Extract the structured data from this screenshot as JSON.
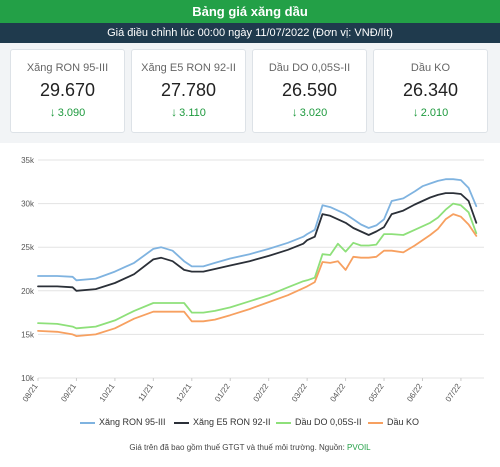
{
  "header": {
    "title": "Bảng giá xăng dầu",
    "subtitle": "Giá điều chỉnh lúc 00:00 ngày 11/07/2022 (Đơn vị: VNĐ/lít)"
  },
  "cards": [
    {
      "name": "Xăng RON 95-III",
      "price": "29.670",
      "change": "3.090"
    },
    {
      "name": "Xăng E5 RON 92-II",
      "price": "27.780",
      "change": "3.110"
    },
    {
      "name": "Dầu DO 0,05S-II",
      "price": "26.590",
      "change": "3.020"
    },
    {
      "name": "Dầu KO",
      "price": "26.340",
      "change": "2.010"
    }
  ],
  "footnote": {
    "text": "Giá trên đã bao gồm thuế GTGT và thuế môi trường. Nguồn: ",
    "source": "PVOIL"
  },
  "chart_data": {
    "type": "line",
    "title": "",
    "xlabel": "",
    "ylabel": "",
    "x_ticks": [
      "08/21",
      "09/21",
      "10/21",
      "11/21",
      "12/21",
      "01/22",
      "02/22",
      "03/22",
      "04/22",
      "05/22",
      "06/22",
      "07/22"
    ],
    "y_ticks": [
      "10k",
      "15k",
      "20k",
      "25k",
      "30k",
      "35k"
    ],
    "ylim": [
      10000,
      35000
    ],
    "xlim": [
      0,
      11.6
    ],
    "grid": true,
    "legend_position": "bottom",
    "series": [
      {
        "name": "Xăng RON 95-III",
        "color": "#7fb3e0",
        "x": [
          0,
          0.5,
          0.9,
          1.0,
          1.5,
          2.0,
          2.5,
          3.0,
          3.2,
          3.5,
          3.8,
          4.0,
          4.3,
          4.6,
          5.0,
          5.5,
          6.0,
          6.5,
          6.9,
          7.0,
          7.2,
          7.4,
          7.6,
          7.8,
          8.0,
          8.2,
          8.4,
          8.6,
          8.8,
          9.0,
          9.2,
          9.5,
          9.8,
          10.0,
          10.2,
          10.4,
          10.6,
          10.8,
          11.0,
          11.2,
          11.4
        ],
        "y": [
          21700,
          21700,
          21600,
          21200,
          21400,
          22200,
          23200,
          24800,
          25000,
          24600,
          23400,
          22800,
          22800,
          23200,
          23700,
          24200,
          24800,
          25500,
          26200,
          26500,
          27000,
          29800,
          29600,
          29200,
          28800,
          28200,
          27600,
          27200,
          27500,
          28200,
          30300,
          30600,
          31400,
          32000,
          32300,
          32600,
          32800,
          32800,
          32700,
          31800,
          29700
        ]
      },
      {
        "name": "Xăng E5 RON 92-II",
        "color": "#2b3038",
        "x": [
          0,
          0.5,
          0.9,
          1.0,
          1.5,
          2.0,
          2.5,
          3.0,
          3.2,
          3.5,
          3.8,
          4.0,
          4.3,
          4.6,
          5.0,
          5.5,
          6.0,
          6.5,
          6.9,
          7.0,
          7.2,
          7.4,
          7.6,
          7.8,
          8.0,
          8.2,
          8.4,
          8.6,
          8.8,
          9.0,
          9.2,
          9.5,
          9.8,
          10.0,
          10.2,
          10.4,
          10.6,
          10.8,
          11.0,
          11.2,
          11.4
        ],
        "y": [
          20500,
          20500,
          20400,
          20000,
          20200,
          20900,
          21900,
          23600,
          23800,
          23400,
          22400,
          22200,
          22200,
          22500,
          22900,
          23400,
          24000,
          24700,
          25400,
          25800,
          26200,
          28800,
          28600,
          28200,
          27800,
          27200,
          26800,
          26400,
          26800,
          27300,
          28800,
          29200,
          29900,
          30300,
          30700,
          31000,
          31200,
          31200,
          31100,
          30300,
          27800
        ]
      },
      {
        "name": "Dầu DO 0,05S-II",
        "color": "#8ee07a",
        "x": [
          0,
          0.5,
          0.9,
          1.0,
          1.5,
          2.0,
          2.5,
          3.0,
          3.2,
          3.5,
          3.8,
          4.0,
          4.3,
          4.6,
          5.0,
          5.5,
          6.0,
          6.5,
          6.9,
          7.0,
          7.2,
          7.4,
          7.6,
          7.8,
          8.0,
          8.2,
          8.4,
          8.6,
          8.8,
          9.0,
          9.2,
          9.5,
          9.8,
          10.0,
          10.2,
          10.4,
          10.6,
          10.8,
          11.0,
          11.2,
          11.4
        ],
        "y": [
          16300,
          16200,
          15900,
          15700,
          15900,
          16600,
          17700,
          18600,
          18600,
          18600,
          18600,
          17500,
          17500,
          17700,
          18100,
          18800,
          19500,
          20400,
          21100,
          21200,
          21500,
          24200,
          24100,
          25400,
          24500,
          25500,
          25200,
          25200,
          25300,
          26500,
          26500,
          26400,
          27000,
          27400,
          27800,
          28400,
          29300,
          30000,
          29800,
          29000,
          26600
        ]
      },
      {
        "name": "Dầu KO",
        "color": "#f7a060",
        "x": [
          0,
          0.5,
          0.9,
          1.0,
          1.5,
          2.0,
          2.5,
          3.0,
          3.2,
          3.5,
          3.8,
          4.0,
          4.3,
          4.6,
          5.0,
          5.5,
          6.0,
          6.5,
          6.9,
          7.0,
          7.2,
          7.4,
          7.6,
          7.8,
          8.0,
          8.2,
          8.4,
          8.6,
          8.8,
          9.0,
          9.2,
          9.5,
          9.8,
          10.0,
          10.2,
          10.4,
          10.6,
          10.8,
          11.0,
          11.2,
          11.4
        ],
        "y": [
          15400,
          15300,
          15000,
          14800,
          15000,
          15700,
          16800,
          17600,
          17600,
          17600,
          17600,
          16500,
          16500,
          16700,
          17200,
          17900,
          18700,
          19500,
          20300,
          20500,
          21000,
          23300,
          23200,
          23400,
          22400,
          23900,
          23800,
          23800,
          23900,
          24600,
          24600,
          24400,
          25200,
          25800,
          26400,
          27100,
          28200,
          28800,
          28500,
          27600,
          26300
        ]
      }
    ]
  }
}
